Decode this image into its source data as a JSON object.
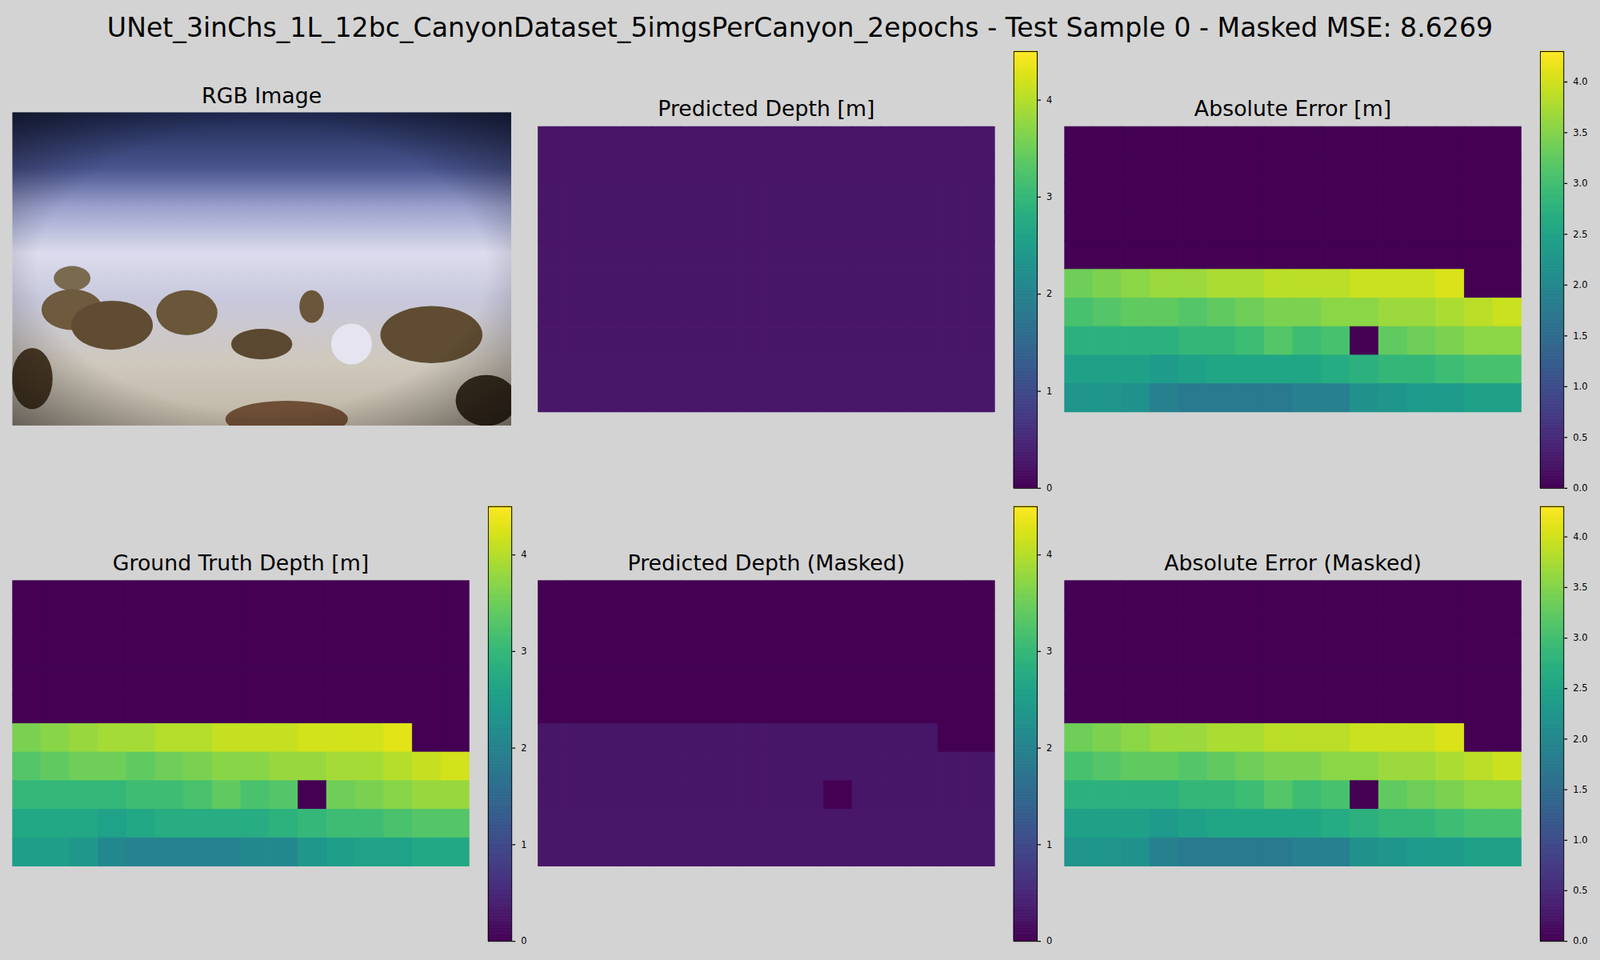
{
  "title": "UNet_3inChs_1L_12bc_CanyonDataset_5imgsPerCanyon_2epochs - Test Sample 0 - Masked MSE: 8.6269",
  "chart_data": [
    {
      "type": "image",
      "title": "RGB Image"
    },
    {
      "type": "heatmap",
      "title": "Predicted Depth [m]",
      "tick_labels": false,
      "colorbar_range": [
        0,
        4.5
      ],
      "colorbar_ticks": [
        0,
        1,
        2,
        3,
        4
      ],
      "cells": [
        [
          0.24,
          0.24,
          0.24,
          0.24,
          0.24,
          0.24,
          0.24,
          0.24,
          0.24,
          0.24,
          0.24,
          0.24,
          0.24,
          0.24,
          0.24,
          0.24
        ],
        [
          0.24,
          0.24,
          0.24,
          0.24,
          0.24,
          0.24,
          0.24,
          0.24,
          0.24,
          0.24,
          0.24,
          0.24,
          0.24,
          0.24,
          0.24,
          0.24
        ],
        [
          0.25,
          0.25,
          0.25,
          0.25,
          0.25,
          0.25,
          0.25,
          0.25,
          0.25,
          0.25,
          0.25,
          0.25,
          0.25,
          0.25,
          0.25,
          0.25
        ],
        [
          0.25,
          0.25,
          0.25,
          0.25,
          0.25,
          0.25,
          0.25,
          0.25,
          0.25,
          0.25,
          0.25,
          0.25,
          0.25,
          0.25,
          0.25,
          0.25
        ],
        [
          0.25,
          0.25,
          0.25,
          0.25,
          0.25,
          0.25,
          0.25,
          0.25,
          0.25,
          0.25,
          0.25,
          0.25,
          0.25,
          0.25,
          0.25,
          0.25
        ],
        [
          0.25,
          0.25,
          0.25,
          0.25,
          0.25,
          0.25,
          0.25,
          0.25,
          0.25,
          0.25,
          0.25,
          0.25,
          0.25,
          0.25,
          0.25,
          0.25
        ],
        [
          0.26,
          0.26,
          0.26,
          0.26,
          0.26,
          0.26,
          0.26,
          0.26,
          0.26,
          0.26,
          0.26,
          0.26,
          0.26,
          0.26,
          0.26,
          0.26
        ],
        [
          0.26,
          0.26,
          0.26,
          0.26,
          0.26,
          0.26,
          0.26,
          0.26,
          0.26,
          0.26,
          0.26,
          0.26,
          0.26,
          0.26,
          0.26,
          0.26
        ],
        [
          0.27,
          0.27,
          0.27,
          0.27,
          0.27,
          0.27,
          0.27,
          0.27,
          0.27,
          0.27,
          0.27,
          0.27,
          0.27,
          0.27,
          0.27,
          0.27
        ],
        [
          0.27,
          0.27,
          0.27,
          0.27,
          0.27,
          0.27,
          0.27,
          0.27,
          0.27,
          0.27,
          0.27,
          0.27,
          0.27,
          0.27,
          0.27,
          0.27
        ]
      ]
    },
    {
      "type": "heatmap",
      "title": "Absolute Error [m]",
      "tick_labels": false,
      "colorbar_range": [
        0,
        4.3
      ],
      "colorbar_ticks": [
        {
          "value": 0,
          "label": "0.0"
        },
        {
          "value": 0.5,
          "label": "0.5"
        },
        {
          "value": 1,
          "label": "1.0"
        },
        {
          "value": 1.5,
          "label": "1.5"
        },
        {
          "value": 2,
          "label": "2.0"
        },
        {
          "value": 2.5,
          "label": "2.5"
        },
        {
          "value": 3,
          "label": "3.0"
        },
        {
          "value": 3.5,
          "label": "3.5"
        },
        {
          "value": 4,
          "label": "4.0"
        }
      ],
      "cells": [
        [
          0,
          0,
          0,
          0,
          0,
          0,
          0,
          0,
          0,
          0,
          0,
          0,
          0,
          0,
          0,
          0
        ],
        [
          0,
          0,
          0,
          0,
          0,
          0,
          0,
          0,
          0,
          0,
          0,
          0,
          0,
          0,
          0,
          0
        ],
        [
          0,
          0,
          0,
          0,
          0,
          0,
          0,
          0,
          0,
          0,
          0,
          0,
          0,
          0,
          0,
          0
        ],
        [
          0,
          0,
          0,
          0,
          0,
          0,
          0,
          0,
          0,
          0,
          0,
          0,
          0,
          0,
          0,
          0
        ],
        [
          0,
          0,
          0,
          0,
          0,
          0,
          0,
          0,
          0,
          0,
          0,
          0,
          0,
          0,
          0,
          0
        ],
        [
          3.35,
          3.45,
          3.55,
          3.65,
          3.65,
          3.75,
          3.75,
          3.85,
          3.85,
          3.85,
          3.95,
          3.95,
          3.95,
          4.05,
          0,
          0
        ],
        [
          3.05,
          3.15,
          3.25,
          3.25,
          3.15,
          3.25,
          3.35,
          3.45,
          3.45,
          3.55,
          3.55,
          3.65,
          3.65,
          3.75,
          3.85,
          3.95
        ],
        [
          2.75,
          2.75,
          2.75,
          2.75,
          2.85,
          2.85,
          2.95,
          3.15,
          2.95,
          3.05,
          0,
          3.25,
          3.35,
          3.45,
          3.55,
          3.55
        ],
        [
          2.45,
          2.45,
          2.45,
          2.35,
          2.45,
          2.55,
          2.55,
          2.55,
          2.55,
          2.65,
          2.75,
          2.85,
          2.85,
          2.95,
          3.05,
          3.05
        ],
        [
          2.25,
          2.25,
          2.15,
          1.85,
          1.75,
          1.75,
          1.75,
          1.75,
          1.85,
          1.85,
          2.15,
          2.25,
          2.35,
          2.35,
          2.45,
          2.45
        ]
      ]
    },
    {
      "type": "heatmap",
      "title": "Ground Truth Depth [m]",
      "tick_labels": false,
      "colorbar_range": [
        0,
        4.5
      ],
      "colorbar_ticks": [
        0,
        1,
        2,
        3,
        4
      ],
      "cells": [
        [
          0,
          0,
          0,
          0,
          0,
          0,
          0,
          0,
          0,
          0,
          0,
          0,
          0,
          0,
          0,
          0
        ],
        [
          0,
          0,
          0,
          0,
          0,
          0,
          0,
          0,
          0,
          0,
          0,
          0,
          0,
          0,
          0,
          0
        ],
        [
          0,
          0,
          0,
          0,
          0,
          0,
          0,
          0,
          0,
          0,
          0,
          0,
          0,
          0,
          0,
          0
        ],
        [
          0,
          0,
          0,
          0,
          0,
          0,
          0,
          0,
          0,
          0,
          0,
          0,
          0,
          0,
          0,
          0
        ],
        [
          0,
          0,
          0,
          0,
          0,
          0,
          0,
          0,
          0,
          0,
          0,
          0,
          0,
          0,
          0,
          0
        ],
        [
          3.6,
          3.7,
          3.8,
          3.9,
          3.9,
          4.0,
          4.0,
          4.1,
          4.1,
          4.1,
          4.2,
          4.2,
          4.2,
          4.3,
          0,
          0
        ],
        [
          3.3,
          3.4,
          3.5,
          3.5,
          3.4,
          3.5,
          3.6,
          3.7,
          3.7,
          3.8,
          3.8,
          3.9,
          3.9,
          4.0,
          4.1,
          4.2
        ],
        [
          3.0,
          3.0,
          3.0,
          3.0,
          3.1,
          3.1,
          3.2,
          3.4,
          3.2,
          3.3,
          0,
          3.5,
          3.6,
          3.7,
          3.8,
          3.8
        ],
        [
          2.7,
          2.7,
          2.7,
          2.6,
          2.7,
          2.8,
          2.8,
          2.8,
          2.8,
          2.9,
          3.0,
          3.1,
          3.1,
          3.2,
          3.3,
          3.3
        ],
        [
          2.5,
          2.5,
          2.4,
          2.1,
          2.0,
          2.0,
          2.0,
          2.0,
          2.1,
          2.1,
          2.4,
          2.5,
          2.6,
          2.6,
          2.7,
          2.7
        ]
      ]
    },
    {
      "type": "heatmap",
      "title": "Predicted Depth (Masked)",
      "tick_labels": false,
      "colorbar_range": [
        0,
        4.5
      ],
      "colorbar_ticks": [
        0,
        1,
        2,
        3,
        4
      ],
      "cells": [
        [
          0,
          0,
          0,
          0,
          0,
          0,
          0,
          0,
          0,
          0,
          0,
          0,
          0,
          0,
          0,
          0
        ],
        [
          0,
          0,
          0,
          0,
          0,
          0,
          0,
          0,
          0,
          0,
          0,
          0,
          0,
          0,
          0,
          0
        ],
        [
          0,
          0,
          0,
          0,
          0,
          0,
          0,
          0,
          0,
          0,
          0,
          0,
          0,
          0,
          0,
          0
        ],
        [
          0,
          0,
          0,
          0,
          0,
          0,
          0,
          0,
          0,
          0,
          0,
          0,
          0,
          0,
          0,
          0
        ],
        [
          0,
          0,
          0,
          0,
          0,
          0,
          0,
          0,
          0,
          0,
          0,
          0,
          0,
          0,
          0,
          0
        ],
        [
          0.25,
          0.25,
          0.25,
          0.25,
          0.25,
          0.25,
          0.25,
          0.25,
          0.25,
          0.25,
          0.25,
          0.25,
          0.25,
          0.25,
          0,
          0
        ],
        [
          0.26,
          0.26,
          0.26,
          0.26,
          0.26,
          0.26,
          0.26,
          0.26,
          0.26,
          0.26,
          0.26,
          0.26,
          0.26,
          0.26,
          0.26,
          0.26
        ],
        [
          0.26,
          0.26,
          0.26,
          0.26,
          0.26,
          0.26,
          0.26,
          0.26,
          0.26,
          0.26,
          0,
          0.26,
          0.26,
          0.26,
          0.26,
          0.26
        ],
        [
          0.27,
          0.27,
          0.27,
          0.27,
          0.27,
          0.27,
          0.27,
          0.27,
          0.27,
          0.27,
          0.27,
          0.27,
          0.27,
          0.27,
          0.27,
          0.27
        ],
        [
          0.27,
          0.27,
          0.27,
          0.27,
          0.27,
          0.27,
          0.27,
          0.27,
          0.27,
          0.27,
          0.27,
          0.27,
          0.27,
          0.27,
          0.27,
          0.27
        ]
      ]
    },
    {
      "type": "heatmap",
      "title": "Absolute Error (Masked)",
      "tick_labels": false,
      "colorbar_range": [
        0,
        4.3
      ],
      "colorbar_ticks": [
        {
          "value": 0,
          "label": "0.0"
        },
        {
          "value": 0.5,
          "label": "0.5"
        },
        {
          "value": 1,
          "label": "1.0"
        },
        {
          "value": 1.5,
          "label": "1.5"
        },
        {
          "value": 2,
          "label": "2.0"
        },
        {
          "value": 2.5,
          "label": "2.5"
        },
        {
          "value": 3,
          "label": "3.0"
        },
        {
          "value": 3.5,
          "label": "3.5"
        },
        {
          "value": 4,
          "label": "4.0"
        }
      ],
      "cells": [
        [
          0,
          0,
          0,
          0,
          0,
          0,
          0,
          0,
          0,
          0,
          0,
          0,
          0,
          0,
          0,
          0
        ],
        [
          0,
          0,
          0,
          0,
          0,
          0,
          0,
          0,
          0,
          0,
          0,
          0,
          0,
          0,
          0,
          0
        ],
        [
          0,
          0,
          0,
          0,
          0,
          0,
          0,
          0,
          0,
          0,
          0,
          0,
          0,
          0,
          0,
          0
        ],
        [
          0,
          0,
          0,
          0,
          0,
          0,
          0,
          0,
          0,
          0,
          0,
          0,
          0,
          0,
          0,
          0
        ],
        [
          0,
          0,
          0,
          0,
          0,
          0,
          0,
          0,
          0,
          0,
          0,
          0,
          0,
          0,
          0,
          0
        ],
        [
          3.35,
          3.45,
          3.55,
          3.65,
          3.65,
          3.75,
          3.75,
          3.85,
          3.85,
          3.85,
          3.95,
          3.95,
          3.95,
          4.05,
          0,
          0
        ],
        [
          3.05,
          3.15,
          3.25,
          3.25,
          3.15,
          3.25,
          3.35,
          3.45,
          3.45,
          3.55,
          3.55,
          3.65,
          3.65,
          3.75,
          3.85,
          3.95
        ],
        [
          2.75,
          2.75,
          2.75,
          2.75,
          2.85,
          2.85,
          2.95,
          3.15,
          2.95,
          3.05,
          0,
          3.25,
          3.35,
          3.45,
          3.55,
          3.55
        ],
        [
          2.45,
          2.45,
          2.45,
          2.35,
          2.45,
          2.55,
          2.55,
          2.55,
          2.55,
          2.65,
          2.75,
          2.85,
          2.85,
          2.95,
          3.05,
          3.05
        ],
        [
          2.25,
          2.25,
          2.15,
          1.85,
          1.75,
          1.75,
          1.75,
          1.75,
          1.85,
          1.85,
          2.15,
          2.25,
          2.35,
          2.35,
          2.45,
          2.45
        ]
      ]
    }
  ]
}
